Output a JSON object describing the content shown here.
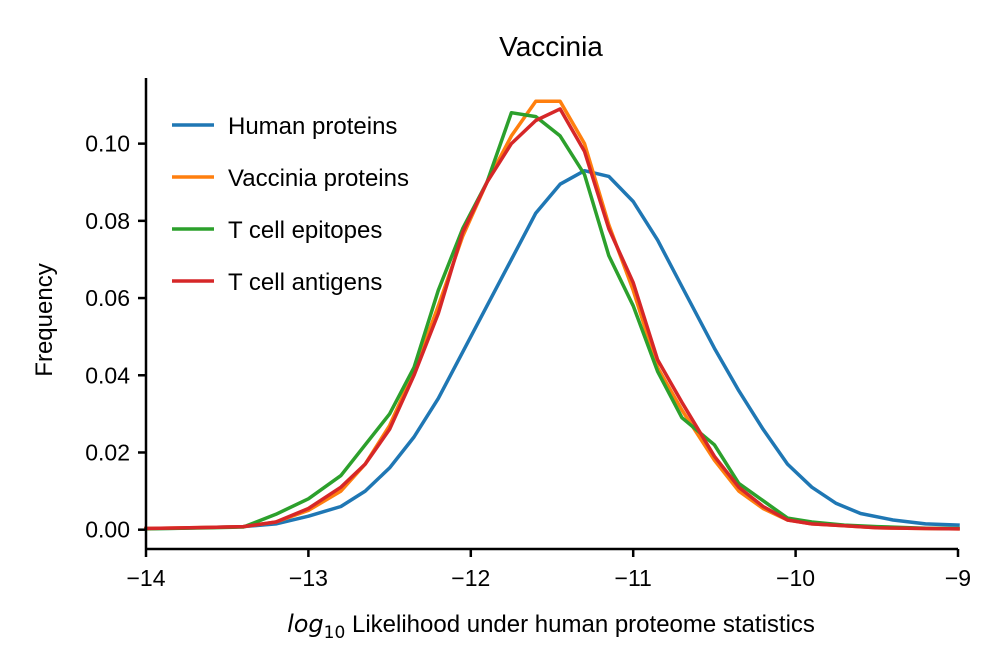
{
  "chart_data": {
    "type": "line",
    "title": "Vaccinia",
    "xlabel_math": "log",
    "xlabel_sub": "10",
    "xlabel_rest": " Likelihood under human proteome statistics",
    "ylabel": "Frequency",
    "xlim": [
      -14,
      -9
    ],
    "ylim": [
      -0.005,
      0.117
    ],
    "xticks": [
      -14,
      -13,
      -12,
      -11,
      -10,
      -9
    ],
    "xtick_labels": [
      "−14",
      "−13",
      "−12",
      "−11",
      "−10",
      "−9"
    ],
    "yticks": [
      0.0,
      0.02,
      0.04,
      0.06,
      0.08,
      0.1
    ],
    "ytick_labels": [
      "0.00",
      "0.02",
      "0.04",
      "0.06",
      "0.08",
      "0.10"
    ],
    "legend_position": "top-left",
    "grid": false,
    "series": [
      {
        "name": "Human proteins",
        "color": "#1f77b4",
        "x": [
          -14.0,
          -13.8,
          -13.6,
          -13.4,
          -13.2,
          -13.0,
          -12.8,
          -12.65,
          -12.5,
          -12.35,
          -12.2,
          -12.05,
          -11.9,
          -11.75,
          -11.6,
          -11.45,
          -11.3,
          -11.15,
          -11.0,
          -10.85,
          -10.7,
          -10.5,
          -10.35,
          -10.2,
          -10.05,
          -9.9,
          -9.75,
          -9.6,
          -9.4,
          -9.2,
          -9.0
        ],
        "y": [
          0.0003,
          0.0004,
          0.0006,
          0.0008,
          0.0015,
          0.0035,
          0.006,
          0.01,
          0.016,
          0.024,
          0.034,
          0.046,
          0.058,
          0.07,
          0.082,
          0.0895,
          0.093,
          0.0915,
          0.085,
          0.075,
          0.063,
          0.047,
          0.036,
          0.026,
          0.017,
          0.011,
          0.0068,
          0.0042,
          0.0025,
          0.0015,
          0.0012
        ]
      },
      {
        "name": "Vaccinia proteins",
        "color": "#ff7f0e",
        "x": [
          -14.0,
          -13.6,
          -13.4,
          -13.2,
          -13.0,
          -12.8,
          -12.65,
          -12.5,
          -12.35,
          -12.2,
          -12.05,
          -11.9,
          -11.75,
          -11.6,
          -11.45,
          -11.3,
          -11.15,
          -11.0,
          -10.85,
          -10.7,
          -10.5,
          -10.35,
          -10.2,
          -10.05,
          -9.9,
          -9.7,
          -9.5,
          -9.2,
          -9.0
        ],
        "y": [
          0.0003,
          0.0006,
          0.0008,
          0.002,
          0.005,
          0.01,
          0.017,
          0.027,
          0.041,
          0.058,
          0.076,
          0.09,
          0.102,
          0.111,
          0.111,
          0.1,
          0.079,
          0.062,
          0.042,
          0.031,
          0.018,
          0.01,
          0.0055,
          0.0025,
          0.0015,
          0.001,
          0.0005,
          0.0003,
          0.0002
        ]
      },
      {
        "name": "T cell epitopes",
        "color": "#2ca02c",
        "x": [
          -14.0,
          -13.6,
          -13.4,
          -13.2,
          -13.0,
          -12.8,
          -12.65,
          -12.5,
          -12.35,
          -12.2,
          -12.05,
          -11.9,
          -11.75,
          -11.6,
          -11.45,
          -11.3,
          -11.15,
          -11.0,
          -10.85,
          -10.7,
          -10.5,
          -10.35,
          -10.2,
          -10.05,
          -9.9,
          -9.7,
          -9.5,
          -9.2,
          -9.0
        ],
        "y": [
          0.0002,
          0.0005,
          0.0007,
          0.004,
          0.008,
          0.014,
          0.022,
          0.03,
          0.042,
          0.062,
          0.078,
          0.09,
          0.108,
          0.107,
          0.102,
          0.092,
          0.071,
          0.058,
          0.041,
          0.029,
          0.022,
          0.012,
          0.0075,
          0.003,
          0.002,
          0.0012,
          0.0008,
          0.0004,
          0.0003
        ]
      },
      {
        "name": "T cell antigens",
        "color": "#d62728",
        "x": [
          -14.0,
          -13.6,
          -13.4,
          -13.2,
          -13.0,
          -12.8,
          -12.65,
          -12.5,
          -12.35,
          -12.2,
          -12.05,
          -11.9,
          -11.75,
          -11.6,
          -11.45,
          -11.3,
          -11.15,
          -11.0,
          -10.85,
          -10.7,
          -10.5,
          -10.35,
          -10.2,
          -10.05,
          -9.9,
          -9.7,
          -9.5,
          -9.2,
          -9.0
        ],
        "y": [
          0.0003,
          0.0006,
          0.0008,
          0.002,
          0.0055,
          0.011,
          0.017,
          0.026,
          0.04,
          0.056,
          0.077,
          0.09,
          0.1,
          0.106,
          0.109,
          0.098,
          0.078,
          0.064,
          0.044,
          0.033,
          0.019,
          0.011,
          0.006,
          0.0025,
          0.0015,
          0.001,
          0.0005,
          0.0003,
          0.0002
        ]
      }
    ]
  }
}
